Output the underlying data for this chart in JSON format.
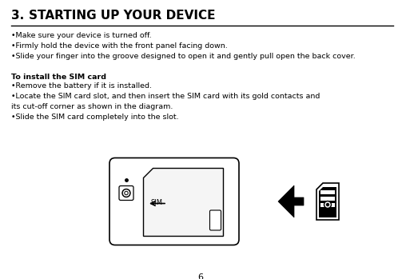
{
  "title_number": "3.",
  "title_text": "STARTING UP YOUR DEVICE",
  "title_fontsize": 11,
  "body_text_1": "•Make sure your device is turned off.\n•Firmly hold the device with the front panel facing down.\n•Slide your finger into the groove designed to open it and gently pull open the back cover.",
  "subtitle_text": "To install the SIM card",
  "body_text_2": "•Remove the battery if it is installed.\n•Locate the SIM card slot, and then insert the SIM card with its gold contacts and\nits cut-off corner as shown in the diagram.\n•Slide the SIM card completely into the slot.",
  "page_number": "6",
  "bg_color": "#ffffff",
  "text_color": "#000000",
  "line_color": "#000000",
  "body_fontsize": 6.8,
  "subtitle_fontsize": 6.8,
  "page_num_fontsize": 8
}
